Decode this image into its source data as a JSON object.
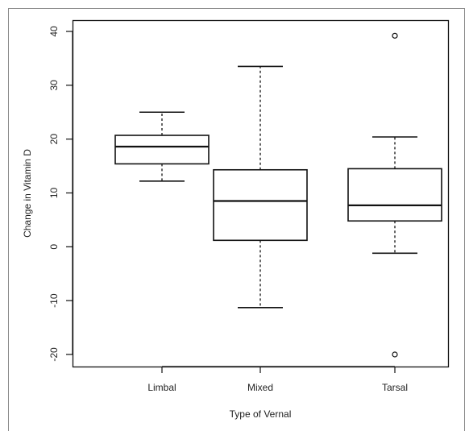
{
  "chart_data": {
    "type": "boxplot",
    "xlabel": "Type of Vernal",
    "ylabel": "Change in Vitamin D",
    "ylim": [
      -22,
      41
    ],
    "yticks": [
      -20,
      -10,
      0,
      10,
      20,
      30,
      40
    ],
    "categories": [
      "Limbal",
      "Mixed",
      "Tarsal"
    ],
    "boxes": [
      {
        "category": "Limbal",
        "whisker_low": 12.2,
        "q1": 15.4,
        "median": 18.6,
        "q3": 20.7,
        "whisker_high": 25.0,
        "outliers": []
      },
      {
        "category": "Mixed",
        "whisker_low": -11.3,
        "q1": 1.2,
        "median": 8.5,
        "q3": 14.3,
        "whisker_high": 33.5,
        "outliers": []
      },
      {
        "category": "Tarsal",
        "whisker_low": -1.2,
        "q1": 4.8,
        "median": 7.7,
        "q3": 14.5,
        "whisker_high": 20.4,
        "outliers": [
          39.2,
          -20.0
        ]
      }
    ],
    "grid": false,
    "legend": "none"
  },
  "colors": {
    "line": "#111111",
    "text": "#222222",
    "frame": "#8a8a8a"
  }
}
